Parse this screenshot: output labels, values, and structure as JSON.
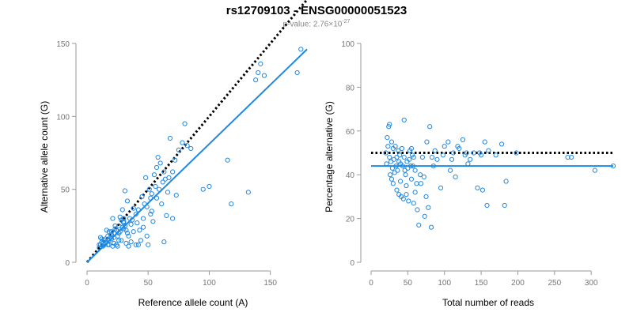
{
  "title": "rs12709103 - ENSG00000051523",
  "subtitle": {
    "prefix": "p-value: 2.76×10",
    "exponent": "-27"
  },
  "colors": {
    "points": "#1e88e5",
    "fit_line": "#1e88e5",
    "reference_line": "#000000",
    "axis": "#999999"
  },
  "chart_data": [
    {
      "type": "scatter",
      "title": "",
      "xlabel": "Reference allele count (A)",
      "ylabel": "Alternative allele count (G)",
      "xlim": [
        0,
        180
      ],
      "ylim": [
        0,
        150
      ],
      "xticks": [
        0,
        50,
        100,
        150
      ],
      "yticks": [
        0,
        50,
        100,
        150
      ],
      "grid": false,
      "points": [
        [
          10,
          10
        ],
        [
          11,
          12
        ],
        [
          12,
          14
        ],
        [
          12,
          16
        ],
        [
          13,
          11
        ],
        [
          14,
          12
        ],
        [
          15,
          13
        ],
        [
          15,
          16
        ],
        [
          16,
          14
        ],
        [
          17,
          18
        ],
        [
          18,
          12
        ],
        [
          18,
          15
        ],
        [
          19,
          17
        ],
        [
          20,
          19
        ],
        [
          20,
          21
        ],
        [
          21,
          11
        ],
        [
          22,
          13
        ],
        [
          22,
          20
        ],
        [
          23,
          23
        ],
        [
          24,
          22
        ],
        [
          24,
          12
        ],
        [
          25,
          18
        ],
        [
          26,
          25
        ],
        [
          26,
          15
        ],
        [
          27,
          21
        ],
        [
          28,
          29
        ],
        [
          29,
          24
        ],
        [
          30,
          30
        ],
        [
          30,
          27
        ],
        [
          31,
          25
        ],
        [
          32,
          22
        ],
        [
          33,
          20
        ],
        [
          34,
          11
        ],
        [
          35,
          30
        ],
        [
          36,
          26
        ],
        [
          37,
          29
        ],
        [
          38,
          21
        ],
        [
          40,
          33
        ],
        [
          42,
          36
        ],
        [
          43,
          22
        ],
        [
          45,
          45
        ],
        [
          46,
          30
        ],
        [
          47,
          40
        ],
        [
          48,
          58
        ],
        [
          49,
          18
        ],
        [
          50,
          12
        ],
        [
          51,
          50
        ],
        [
          52,
          44
        ],
        [
          53,
          47
        ],
        [
          54,
          28
        ],
        [
          55,
          60
        ],
        [
          56,
          52
        ],
        [
          57,
          65
        ],
        [
          58,
          72
        ],
        [
          60,
          68
        ],
        [
          61,
          40
        ],
        [
          62,
          55
        ],
        [
          63,
          62
        ],
        [
          64,
          57
        ],
        [
          65,
          32
        ],
        [
          66,
          48
        ],
        [
          68,
          85
        ],
        [
          70,
          62
        ],
        [
          72,
          70
        ],
        [
          73,
          46
        ],
        [
          75,
          77
        ],
        [
          78,
          82
        ],
        [
          80,
          95
        ],
        [
          82,
          80
        ],
        [
          85,
          78
        ],
        [
          95,
          50
        ],
        [
          100,
          52
        ],
        [
          115,
          70
        ],
        [
          118,
          40
        ],
        [
          132,
          48
        ],
        [
          138,
          125
        ],
        [
          140,
          130
        ],
        [
          142,
          136
        ],
        [
          145,
          128
        ],
        [
          172,
          130
        ],
        [
          175,
          146
        ],
        [
          10,
          12
        ],
        [
          14,
          15
        ],
        [
          17,
          12
        ],
        [
          20,
          16
        ],
        [
          23,
          25
        ],
        [
          26,
          20
        ],
        [
          28,
          15
        ],
        [
          30,
          28
        ],
        [
          32,
          13
        ],
        [
          34,
          18
        ],
        [
          36,
          14
        ],
        [
          40,
          12
        ],
        [
          42,
          12
        ],
        [
          44,
          15
        ],
        [
          46,
          24
        ],
        [
          52,
          33
        ],
        [
          57,
          44
        ],
        [
          63,
          14
        ],
        [
          70,
          30
        ],
        [
          29,
          36
        ],
        [
          31,
          49
        ],
        [
          33,
          42
        ],
        [
          21,
          30
        ],
        [
          16,
          22
        ],
        [
          11,
          17
        ],
        [
          13,
          13
        ],
        [
          18,
          21
        ],
        [
          22,
          17
        ],
        [
          25,
          11
        ],
        [
          27,
          31
        ],
        [
          30,
          23
        ],
        [
          38,
          37
        ],
        [
          41,
          27
        ],
        [
          49,
          38
        ],
        [
          53,
          35
        ],
        [
          59,
          50
        ],
        [
          67,
          58
        ]
      ],
      "fit_line": [
        [
          0,
          0
        ],
        [
          180,
          146
        ]
      ],
      "reference_line": [
        [
          0,
          0
        ],
        [
          180,
          180
        ]
      ]
    },
    {
      "type": "scatter",
      "title": "",
      "xlabel": "Total number of reads",
      "ylabel": "Percentage alternative (G)",
      "xlim": [
        0,
        330
      ],
      "ylim": [
        0,
        100
      ],
      "xticks": [
        0,
        50,
        100,
        150,
        200,
        250,
        300
      ],
      "yticks": [
        0,
        20,
        40,
        60,
        80,
        100
      ],
      "grid": false,
      "points": [
        [
          20,
          50
        ],
        [
          21,
          45
        ],
        [
          22,
          57
        ],
        [
          23,
          53
        ],
        [
          24,
          62
        ],
        [
          25,
          63
        ],
        [
          25,
          48
        ],
        [
          26,
          40
        ],
        [
          27,
          46
        ],
        [
          28,
          55
        ],
        [
          28,
          38
        ],
        [
          29,
          43
        ],
        [
          30,
          36
        ],
        [
          30,
          52
        ],
        [
          31,
          47
        ],
        [
          32,
          41
        ],
        [
          33,
          53
        ],
        [
          34,
          44
        ],
        [
          35,
          48
        ],
        [
          35,
          33
        ],
        [
          36,
          42
        ],
        [
          37,
          51
        ],
        [
          38,
          31
        ],
        [
          38,
          46
        ],
        [
          39,
          49
        ],
        [
          40,
          45
        ],
        [
          40,
          37
        ],
        [
          41,
          30
        ],
        [
          42,
          52
        ],
        [
          43,
          44
        ],
        [
          44,
          29
        ],
        [
          45,
          48
        ],
        [
          45,
          65
        ],
        [
          46,
          42
        ],
        [
          47,
          40
        ],
        [
          48,
          35
        ],
        [
          48,
          31
        ],
        [
          49,
          46
        ],
        [
          50,
          43
        ],
        [
          51,
          28
        ],
        [
          52,
          47
        ],
        [
          53,
          51
        ],
        [
          54,
          44
        ],
        [
          55,
          38
        ],
        [
          55,
          52
        ],
        [
          56,
          49
        ],
        [
          57,
          44
        ],
        [
          58,
          48
        ],
        [
          58,
          27
        ],
        [
          60,
          32
        ],
        [
          60,
          42
        ],
        [
          62,
          36
        ],
        [
          63,
          24
        ],
        [
          65,
          17
        ],
        [
          67,
          40
        ],
        [
          68,
          36
        ],
        [
          70,
          48
        ],
        [
          72,
          39
        ],
        [
          73,
          21
        ],
        [
          75,
          30
        ],
        [
          76,
          55
        ],
        [
          78,
          25
        ],
        [
          80,
          62
        ],
        [
          82,
          16
        ],
        [
          83,
          48
        ],
        [
          85,
          44
        ],
        [
          87,
          51
        ],
        [
          90,
          47
        ],
        [
          95,
          34
        ],
        [
          98,
          49
        ],
        [
          100,
          53
        ],
        [
          105,
          55
        ],
        [
          108,
          42
        ],
        [
          110,
          47
        ],
        [
          112,
          50
        ],
        [
          115,
          39
        ],
        [
          118,
          53
        ],
        [
          120,
          52
        ],
        [
          125,
          56
        ],
        [
          128,
          49
        ],
        [
          130,
          50
        ],
        [
          132,
          45
        ],
        [
          135,
          47
        ],
        [
          140,
          50
        ],
        [
          145,
          34
        ],
        [
          148,
          50
        ],
        [
          150,
          49
        ],
        [
          152,
          33
        ],
        [
          155,
          55
        ],
        [
          158,
          26
        ],
        [
          160,
          51
        ],
        [
          170,
          49
        ],
        [
          178,
          54
        ],
        [
          182,
          26
        ],
        [
          184,
          37
        ],
        [
          198,
          50
        ],
        [
          268,
          48
        ],
        [
          273,
          48
        ],
        [
          305,
          42
        ],
        [
          330,
          44
        ]
      ],
      "fit_line": [
        [
          0,
          44
        ],
        [
          330,
          44
        ]
      ],
      "reference_line": [
        [
          0,
          50
        ],
        [
          330,
          50
        ]
      ]
    }
  ]
}
